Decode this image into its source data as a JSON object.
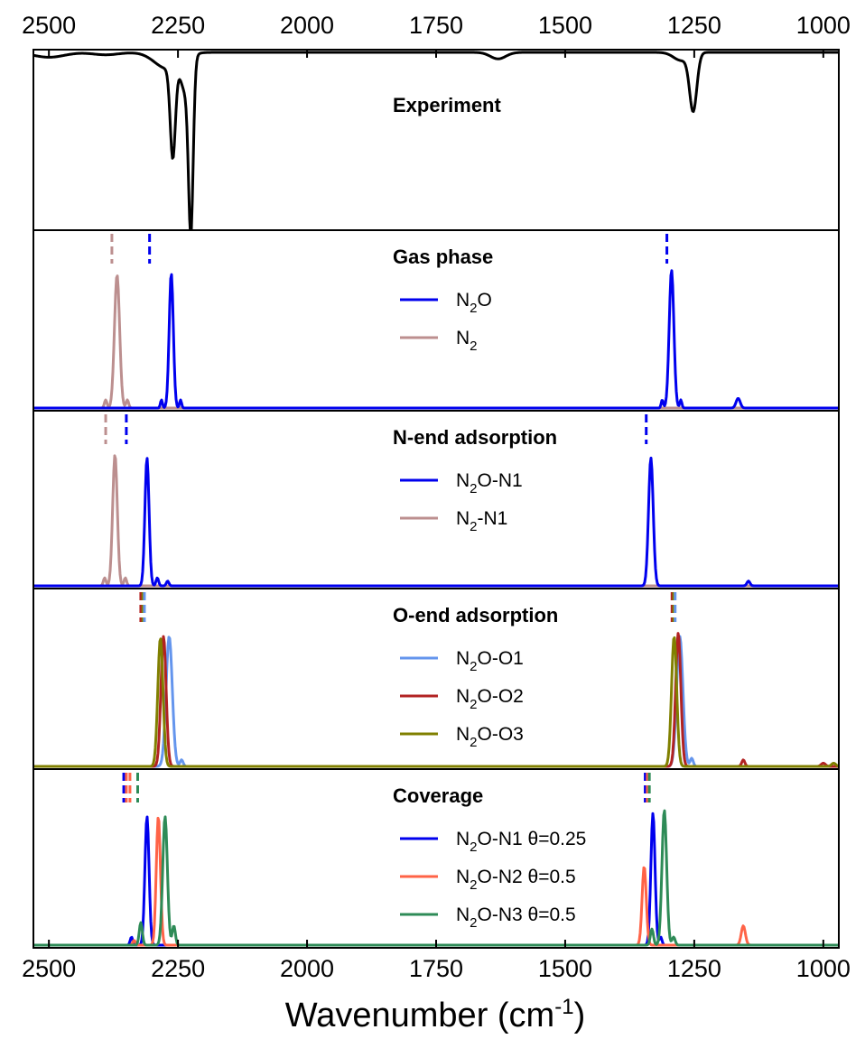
{
  "chart_data": {
    "type": "line",
    "xlabel": "Wavenumber (cm",
    "xlabel_sup": "-1",
    "xlabel_end": ")",
    "xlim": [
      2530,
      970
    ],
    "x_reversed": true,
    "x_ticks": [
      2500,
      2250,
      2000,
      1750,
      1500,
      1250,
      1000
    ],
    "x_tick_labels": [
      "2500",
      "2250",
      "2000",
      "1750",
      "1500",
      "1250",
      "1000"
    ],
    "ticks_on_top": true,
    "y_axis_labels": false,
    "panels": [
      {
        "title": "Experiment",
        "inverted": true,
        "series": [
          {
            "color": "#000000",
            "peaks": [
              {
                "x": 2500,
                "h": 0.03,
                "w": 30
              },
              {
                "x": 2390,
                "h": 0.015,
                "w": 25
              },
              {
                "x": 2260,
                "h": 0.56,
                "w": 5
              },
              {
                "x": 2225,
                "h": 1.0,
                "w": 4.5
              },
              {
                "x": 2235,
                "h": 0.2,
                "w": 9
              },
              {
                "x": 2270,
                "h": 0.1,
                "w": 25
              },
              {
                "x": 1630,
                "h": 0.04,
                "w": 15
              },
              {
                "x": 1252,
                "h": 0.35,
                "w": 7
              },
              {
                "x": 1275,
                "h": 0.05,
                "w": 15
              }
            ]
          }
        ]
      },
      {
        "title": "Gas phase",
        "legend": [
          {
            "label": "N",
            "sub": "2",
            "rest": "O",
            "color": "#0000ee"
          },
          {
            "label": "N",
            "sub": "2",
            "rest": "",
            "color": "#bc8f8f"
          }
        ],
        "markers": [
          {
            "x": 2378,
            "color": "#bc8f8f"
          },
          {
            "x": 2305,
            "color": "#0000ee"
          },
          {
            "x": 1303,
            "color": "#0000ee"
          }
        ],
        "series": [
          {
            "color": "#bc8f8f",
            "peaks": [
              {
                "x": 2368,
                "h": 0.82,
                "w": 5
              },
              {
                "x": 2390,
                "h": 0.05,
                "w": 2.5
              },
              {
                "x": 2348,
                "h": 0.05,
                "w": 2.5
              }
            ]
          },
          {
            "color": "#0000ee",
            "peaks": [
              {
                "x": 2263,
                "h": 0.83,
                "w": 4
              },
              {
                "x": 2282,
                "h": 0.05,
                "w": 2
              },
              {
                "x": 2245,
                "h": 0.05,
                "w": 2
              },
              {
                "x": 1294,
                "h": 0.85,
                "w": 4.5
              },
              {
                "x": 1312,
                "h": 0.05,
                "w": 2
              },
              {
                "x": 1276,
                "h": 0.05,
                "w": 2
              },
              {
                "x": 1165,
                "h": 0.06,
                "w": 4
              }
            ]
          }
        ]
      },
      {
        "title": "N-end adsorption",
        "legend": [
          {
            "label": "N",
            "sub": "2",
            "rest": "O-N1",
            "color": "#0000ee"
          },
          {
            "label": "N",
            "sub": "2",
            "rest": "-N1",
            "color": "#bc8f8f"
          }
        ],
        "markers": [
          {
            "x": 2390,
            "color": "#bc8f8f"
          },
          {
            "x": 2350,
            "color": "#0000ee"
          },
          {
            "x": 1343,
            "color": "#0000ee"
          }
        ],
        "series": [
          {
            "color": "#bc8f8f",
            "peaks": [
              {
                "x": 2372,
                "h": 0.82,
                "w": 4.5
              },
              {
                "x": 2392,
                "h": 0.05,
                "w": 2.5
              },
              {
                "x": 2352,
                "h": 0.05,
                "w": 2.5
              }
            ]
          },
          {
            "color": "#0000ee",
            "peaks": [
              {
                "x": 2310,
                "h": 0.8,
                "w": 4
              },
              {
                "x": 2290,
                "h": 0.05,
                "w": 2.5
              },
              {
                "x": 2270,
                "h": 0.03,
                "w": 2.5
              },
              {
                "x": 1334,
                "h": 0.8,
                "w": 4.5
              },
              {
                "x": 1145,
                "h": 0.03,
                "w": 3
              }
            ]
          }
        ]
      },
      {
        "title": "O-end adsorption",
        "legend": [
          {
            "label": "N",
            "sub": "2",
            "rest": "O-O1",
            "color": "#6495ed"
          },
          {
            "label": "N",
            "sub": "2",
            "rest": "O-O2",
            "color": "#b22222"
          },
          {
            "label": "N",
            "sub": "2",
            "rest": "O-O3",
            "color": "#808000"
          }
        ],
        "markers": [
          {
            "x": 2322,
            "color": "#b22222"
          },
          {
            "x": 2318,
            "color": "#808000"
          },
          {
            "x": 2315,
            "color": "#6495ed"
          },
          {
            "x": 1293,
            "color": "#b22222"
          },
          {
            "x": 1290,
            "color": "#808000"
          },
          {
            "x": 1287,
            "color": "#6495ed"
          }
        ],
        "series": [
          {
            "color": "#6495ed",
            "peaks": [
              {
                "x": 2267,
                "h": 0.8,
                "w": 6
              },
              {
                "x": 2243,
                "h": 0.04,
                "w": 3
              },
              {
                "x": 1278,
                "h": 0.8,
                "w": 6
              },
              {
                "x": 1255,
                "h": 0.05,
                "w": 3
              }
            ]
          },
          {
            "color": "#b22222",
            "peaks": [
              {
                "x": 2278,
                "h": 0.8,
                "w": 5
              },
              {
                "x": 1281,
                "h": 0.82,
                "w": 5
              },
              {
                "x": 1155,
                "h": 0.04,
                "w": 3
              },
              {
                "x": 1000,
                "h": 0.02,
                "w": 4
              }
            ]
          },
          {
            "color": "#808000",
            "peaks": [
              {
                "x": 2284,
                "h": 0.79,
                "w": 5
              },
              {
                "x": 1289,
                "h": 0.8,
                "w": 5
              },
              {
                "x": 980,
                "h": 0.02,
                "w": 4
              }
            ]
          }
        ]
      },
      {
        "title": "Coverage",
        "legend": [
          {
            "label": "N",
            "sub": "2",
            "rest": "O-N1 θ=0.25",
            "color": "#0000ee"
          },
          {
            "label": "N",
            "sub": "2",
            "rest": "O-N2 θ=0.5",
            "color": "#ff6347"
          },
          {
            "label": "N",
            "sub": "2",
            "rest": "O-N3 θ=0.5",
            "color": "#2e8b57"
          }
        ],
        "markers": [
          {
            "x": 2355,
            "color": "#0000ee"
          },
          {
            "x": 2350,
            "color": "#ff6347"
          },
          {
            "x": 2343,
            "color": "#ff6347"
          },
          {
            "x": 2328,
            "color": "#2e8b57"
          },
          {
            "x": 1345,
            "color": "#0000ee"
          },
          {
            "x": 1341,
            "color": "#ff6347"
          },
          {
            "x": 1337,
            "color": "#2e8b57"
          }
        ],
        "series": [
          {
            "color": "#0000ee",
            "peaks": [
              {
                "x": 2310,
                "h": 0.8,
                "w": 4
              },
              {
                "x": 2340,
                "h": 0.05,
                "w": 2.5
              },
              {
                "x": 1330,
                "h": 0.82,
                "w": 4
              },
              {
                "x": 1315,
                "h": 0.05,
                "w": 2.5
              }
            ]
          },
          {
            "color": "#ff6347",
            "peaks": [
              {
                "x": 2288,
                "h": 0.8,
                "w": 4
              },
              {
                "x": 1347,
                "h": 0.49,
                "w": 4
              },
              {
                "x": 1155,
                "h": 0.12,
                "w": 4
              },
              {
                "x": 2335,
                "h": 0.03,
                "w": 2.5
              }
            ]
          },
          {
            "color": "#2e8b57",
            "peaks": [
              {
                "x": 2275,
                "h": 0.8,
                "w": 4.5
              },
              {
                "x": 2322,
                "h": 0.14,
                "w": 3
              },
              {
                "x": 2258,
                "h": 0.12,
                "w": 3
              },
              {
                "x": 1308,
                "h": 0.84,
                "w": 4.5
              },
              {
                "x": 1332,
                "h": 0.1,
                "w": 3
              },
              {
                "x": 1290,
                "h": 0.05,
                "w": 3
              }
            ]
          }
        ]
      }
    ]
  }
}
